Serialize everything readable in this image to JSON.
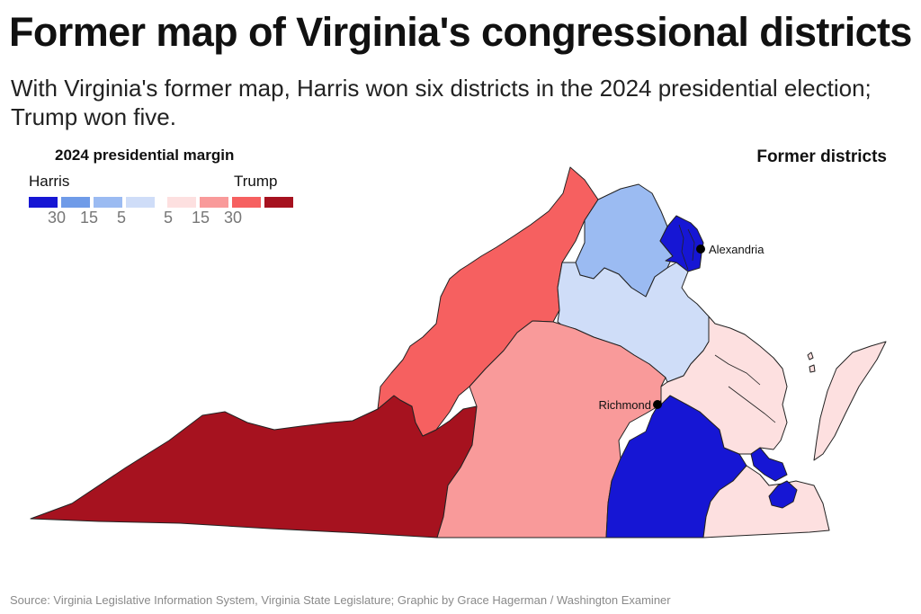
{
  "title": "Former map of Virginia's congressional districts",
  "subtitle": "With Virginia's former map, Harris won six districts in the 2024 presidential election; Trump won five.",
  "legend": {
    "title": "2024 presidential margin",
    "left_label": "Harris",
    "right_label": "Trump",
    "bins": [
      {
        "side": "Harris",
        "color": "#1616d4",
        "tick": "30"
      },
      {
        "side": "Harris",
        "color": "#6f9be8",
        "tick": "15"
      },
      {
        "side": "Harris",
        "color": "#9bbbf2",
        "tick": "5"
      },
      {
        "side": "Harris",
        "color": "#cfddf8",
        "tick": ""
      },
      {
        "side": "Trump",
        "color": "#fde0e0",
        "tick": "5"
      },
      {
        "side": "Trump",
        "color": "#f99a9a",
        "tick": "15"
      },
      {
        "side": "Trump",
        "color": "#f66060",
        "tick": "30"
      },
      {
        "side": "Trump",
        "color": "#a6121f",
        "tick": ""
      }
    ]
  },
  "map_label": "Former districts",
  "cities": {
    "richmond": "Richmond",
    "alexandria": "Alexandria"
  },
  "source": "Source: Virginia Legislative Information System, Virginia State Legislature;  Graphic by Grace Hagerman / Washington Examiner",
  "colors": {
    "harris_strong": "#1616d4",
    "harris_mid": "#9bbbf2",
    "harris_lean": "#cfddf8",
    "trump_lean": "#fde0e0",
    "trump_mid": "#f99a9a",
    "trump_high": "#f66060",
    "trump_strong": "#a6121f",
    "border": "#222222"
  }
}
